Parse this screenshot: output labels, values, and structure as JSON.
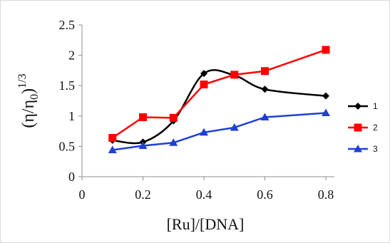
{
  "chart_data": {
    "type": "line",
    "xlabel": "[Ru]/[DNA]",
    "ylabel": "(η/η0)1/3",
    "ylabel_parts": {
      "main": "(η/η",
      "sub": "0",
      "close": ")",
      "sup": "1/3"
    },
    "xlim": [
      0,
      0.8
    ],
    "ylim": [
      0,
      2.5
    ],
    "x_ticks": [
      0,
      0.2,
      0.4,
      0.6,
      0.8
    ],
    "x_tick_labels": [
      "0",
      "0.2",
      "0.4",
      "0.6",
      "0.8"
    ],
    "y_ticks": [
      0,
      0.5,
      1,
      1.5,
      2,
      2.5
    ],
    "y_tick_labels": [
      "0",
      "0.5",
      "1",
      "1.5",
      "2",
      "2.5"
    ],
    "grid": false,
    "legend_position": "right",
    "series": [
      {
        "name": "1",
        "color": "#000000",
        "marker": "diamond",
        "smooth": true,
        "x": [
          0.1,
          0.2,
          0.3,
          0.4,
          0.5,
          0.6,
          0.8
        ],
        "y": [
          0.6,
          0.57,
          0.92,
          1.7,
          1.67,
          1.44,
          1.33
        ]
      },
      {
        "name": "2",
        "color": "#ff0000",
        "marker": "square",
        "smooth": false,
        "x": [
          0.1,
          0.2,
          0.3,
          0.4,
          0.5,
          0.6,
          0.8
        ],
        "y": [
          0.64,
          0.98,
          0.97,
          1.52,
          1.68,
          1.74,
          2.09
        ]
      },
      {
        "name": "3",
        "color": "#1f3fd6",
        "marker": "triangle",
        "smooth": false,
        "x": [
          0.1,
          0.2,
          0.3,
          0.4,
          0.5,
          0.6,
          0.8
        ],
        "y": [
          0.44,
          0.51,
          0.56,
          0.73,
          0.81,
          0.98,
          1.05
        ]
      }
    ]
  }
}
